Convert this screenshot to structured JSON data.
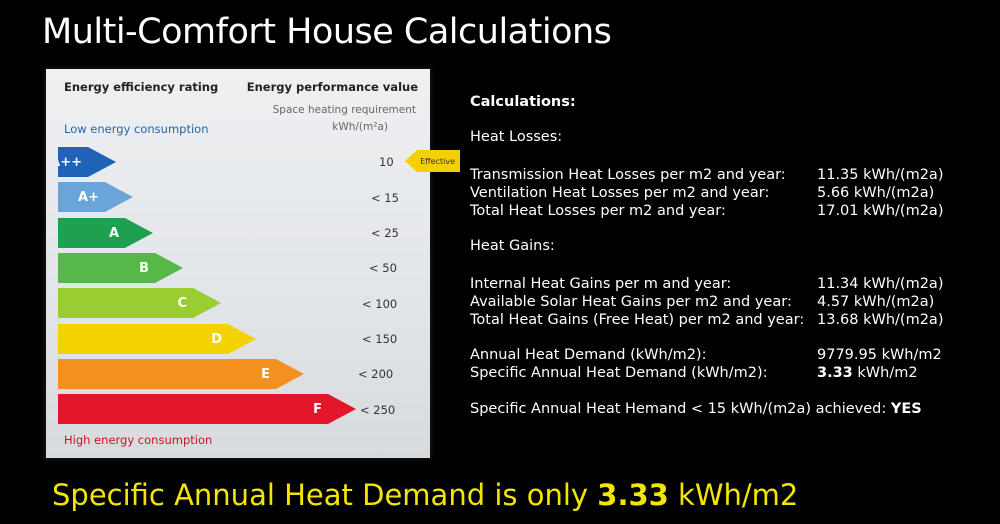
{
  "title": "Multi-Comfort House Calculations",
  "label": {
    "header_left": "Energy efficiency rating",
    "header_right": "Energy performance value",
    "subheader_1": "Space heating requirement",
    "subheader_2": "kWh/(m²a)",
    "low_label": "Low energy consumption",
    "high_label": "High energy consumption",
    "effective_tag": "Effective",
    "bars": [
      {
        "grade": "A++",
        "value": "10",
        "color": "#1e63b5"
      },
      {
        "grade": "A+",
        "value": "< 15",
        "color": "#6aa4d8"
      },
      {
        "grade": "A",
        "value": "< 25",
        "color": "#1ea050"
      },
      {
        "grade": "B",
        "value": "< 50",
        "color": "#55b848"
      },
      {
        "grade": "C",
        "value": "< 100",
        "color": "#9acd32"
      },
      {
        "grade": "D",
        "value": "< 150",
        "color": "#f4d200"
      },
      {
        "grade": "E",
        "value": "< 200",
        "color": "#f29120"
      },
      {
        "grade": "F",
        "value": "< 250",
        "color": "#e3162b"
      }
    ]
  },
  "calc": {
    "heading": "Calculations:",
    "losses_heading": "Heat Losses:",
    "losses": [
      {
        "label": "Transmission Heat Losses per m2 and year:",
        "value": "11.35 kWh/(m2a)"
      },
      {
        "label": "Ventilation Heat Losses per m2 and year:",
        "value": "5.66 kWh/(m2a)"
      },
      {
        "label": "Total Heat Losses per m2 and year:",
        "value": "17.01 kWh/(m2a)"
      }
    ],
    "gains_heading": "Heat Gains:",
    "gains": [
      {
        "label": "Internal Heat Gains per m and year:",
        "value": "11.34 kWh/(m2a)"
      },
      {
        "label": "Available Solar Heat Gains per m2 and year:",
        "value": "4.57 kWh/(m2a)"
      },
      {
        "label": "Total Heat Gains (Free Heat) per m2 and year:",
        "value": "13.68 kWh/(m2a)"
      }
    ],
    "annual_label": "Annual Heat Demand (kWh/m2):",
    "annual_value": "9779.95 kWh/m2",
    "specific_label": "Specific Annual Heat Demand (kWh/m2):",
    "specific_value_num": "3.33",
    "specific_value_unit": " kWh/m2",
    "achieved_text": "Specific Annual Heat Hemand < 15 kWh/(m2a) achieved: ",
    "achieved_value": "YES"
  },
  "bottom": {
    "prefix": "Specific Annual Heat Demand is only ",
    "number": "3.33",
    "suffix": " kWh/m2"
  }
}
